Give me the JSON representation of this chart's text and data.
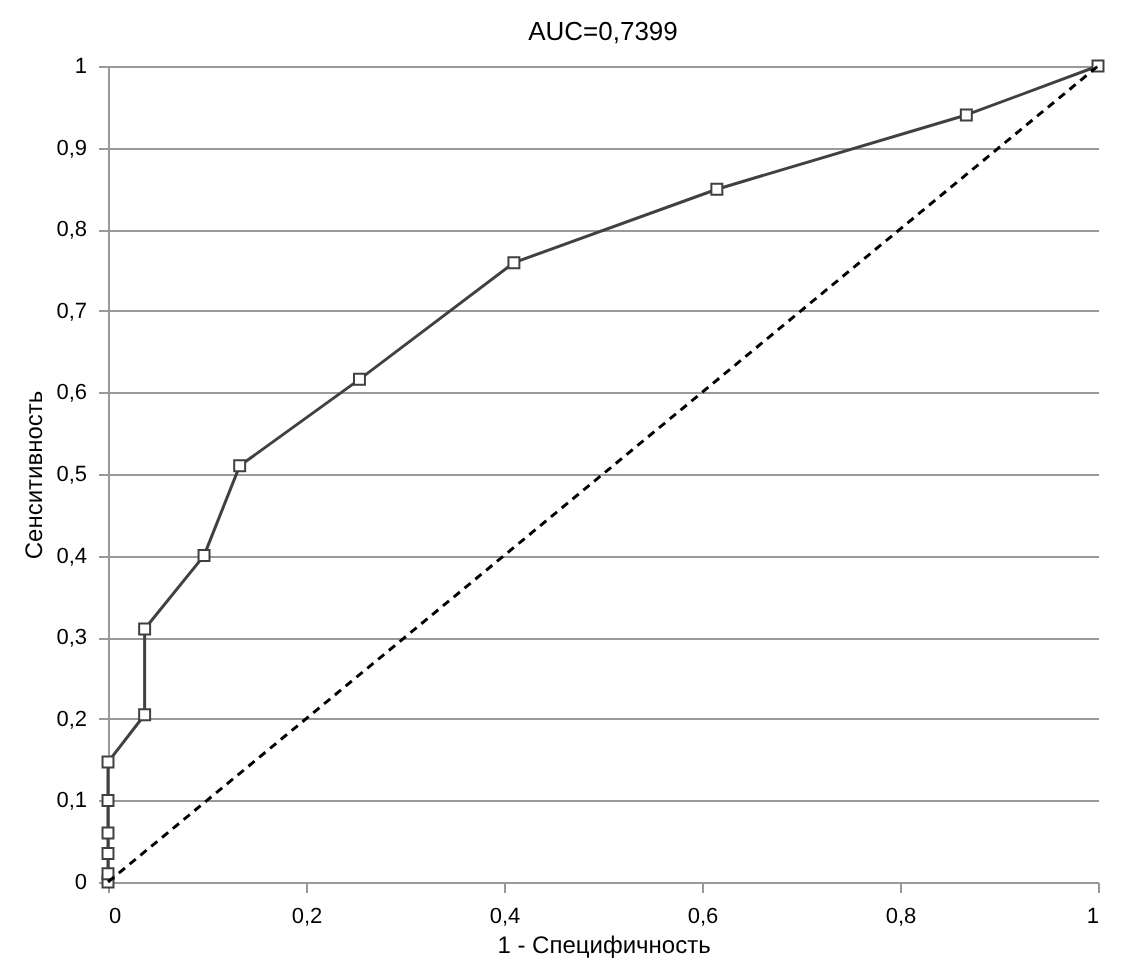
{
  "chart_data": {
    "type": "line",
    "title": "AUC=0,7399",
    "xlabel": "1 - Специфичность",
    "ylabel": "Сенситивность",
    "xlim": [
      0,
      1
    ],
    "ylim": [
      0,
      1
    ],
    "xticks": [
      {
        "value": 0,
        "label": "0"
      },
      {
        "value": 0.2,
        "label": "0,2"
      },
      {
        "value": 0.4,
        "label": "0,4"
      },
      {
        "value": 0.6,
        "label": "0,6"
      },
      {
        "value": 0.8,
        "label": "0,8"
      },
      {
        "value": 1,
        "label": "1"
      }
    ],
    "yticks": [
      {
        "value": 0,
        "label": "0"
      },
      {
        "value": 0.1,
        "label": "0,1"
      },
      {
        "value": 0.2,
        "label": "0,2"
      },
      {
        "value": 0.3,
        "label": "0,3"
      },
      {
        "value": 0.4,
        "label": "0,4"
      },
      {
        "value": 0.5,
        "label": "0,5"
      },
      {
        "value": 0.6,
        "label": "0,6"
      },
      {
        "value": 0.7,
        "label": "0,7"
      },
      {
        "value": 0.8,
        "label": "0,8"
      },
      {
        "value": 0.9,
        "label": "0,9"
      },
      {
        "value": 1,
        "label": "1"
      }
    ],
    "grid": "y",
    "series": [
      {
        "color": "#404040",
        "marker": "square",
        "line_style": "solid",
        "x": [
          0,
          0,
          0,
          0,
          0,
          0,
          0.037,
          0.037,
          0.097,
          0.133,
          0.254,
          0.41,
          0.615,
          0.867,
          1
        ],
        "values": [
          0,
          0.01,
          0.035,
          0.06,
          0.1,
          0.147,
          0.205,
          0.31,
          0.4,
          0.51,
          0.616,
          0.759,
          0.849,
          0.94,
          1
        ]
      },
      {
        "color": "#000000",
        "marker": "none",
        "line_style": "dashed",
        "x": [
          0,
          1
        ],
        "values": [
          0,
          1
        ]
      }
    ]
  }
}
